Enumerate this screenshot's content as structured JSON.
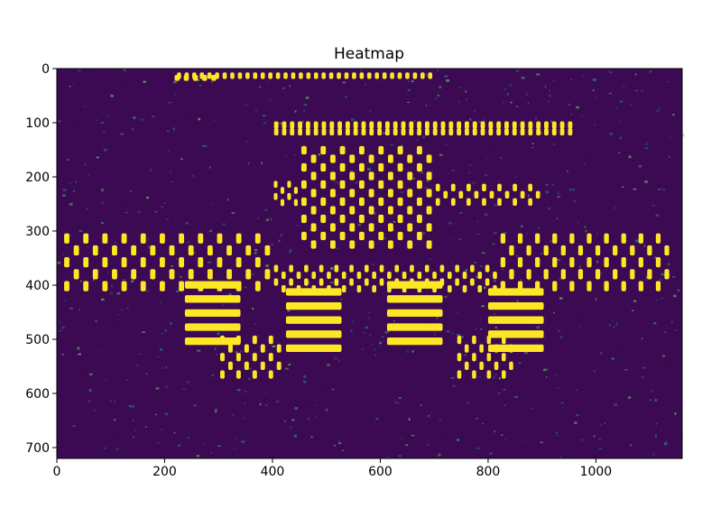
{
  "chart_data": {
    "type": "heatmap",
    "title": "Heatmap",
    "xlabel": "",
    "ylabel": "",
    "xlim": [
      0,
      1160
    ],
    "ylim": [
      720,
      0
    ],
    "xticks": [
      0,
      200,
      400,
      600,
      800,
      1000
    ],
    "yticks": [
      0,
      100,
      200,
      300,
      400,
      500,
      600,
      700
    ],
    "colormap": "viridis",
    "background_color": "#3b0a52",
    "colors": {
      "low": "#440154",
      "mid_low": "#3b528b",
      "mid": "#21918c",
      "mid_high": "#5ec962",
      "high": "#fde725"
    },
    "hot_regions": [
      {
        "label": "top-row",
        "x": [
          220,
          700
        ],
        "y": [
          5,
          15
        ],
        "rows": 1,
        "cols": 34
      },
      {
        "label": "top-left-cluster",
        "x": [
          215,
          300
        ],
        "y": [
          10,
          18
        ],
        "rows": 1,
        "cols": 5
      },
      {
        "label": "upper-band",
        "x": [
          400,
          960
        ],
        "y": [
          95,
          120
        ],
        "rows": 2,
        "cols": 38
      },
      {
        "label": "center-block",
        "x": [
          450,
          700
        ],
        "y": [
          140,
          330
        ],
        "rows": 12,
        "cols": 14
      },
      {
        "label": "left-wing",
        "x": [
          400,
          450
        ],
        "y": [
          205,
          250
        ],
        "rows": 4,
        "cols": 4
      },
      {
        "label": "right-wing",
        "x": [
          700,
          900
        ],
        "y": [
          210,
          250
        ],
        "rows": 3,
        "cols": 14
      },
      {
        "label": "main-arch-left",
        "x": [
          10,
          400
        ],
        "y": [
          300,
          410
        ],
        "rows": 5,
        "cols": 22
      },
      {
        "label": "main-arch-center",
        "x": [
          400,
          820
        ],
        "y": [
          360,
          410
        ],
        "rows": 4,
        "cols": 30
      },
      {
        "label": "main-arch-right",
        "x": [
          820,
          1140
        ],
        "y": [
          300,
          410
        ],
        "rows": 5,
        "cols": 20
      },
      {
        "label": "lower-left-block",
        "x": [
          300,
          420
        ],
        "y": [
          490,
          570
        ],
        "rows": 5,
        "cols": 8
      },
      {
        "label": "lower-right-block",
        "x": [
          740,
          850
        ],
        "y": [
          490,
          570
        ],
        "rows": 5,
        "cols": 8
      },
      {
        "label": "pillars",
        "x": [
          200,
          950
        ],
        "y": [
          390,
          520
        ],
        "rows": 10,
        "cols": 4
      }
    ]
  }
}
